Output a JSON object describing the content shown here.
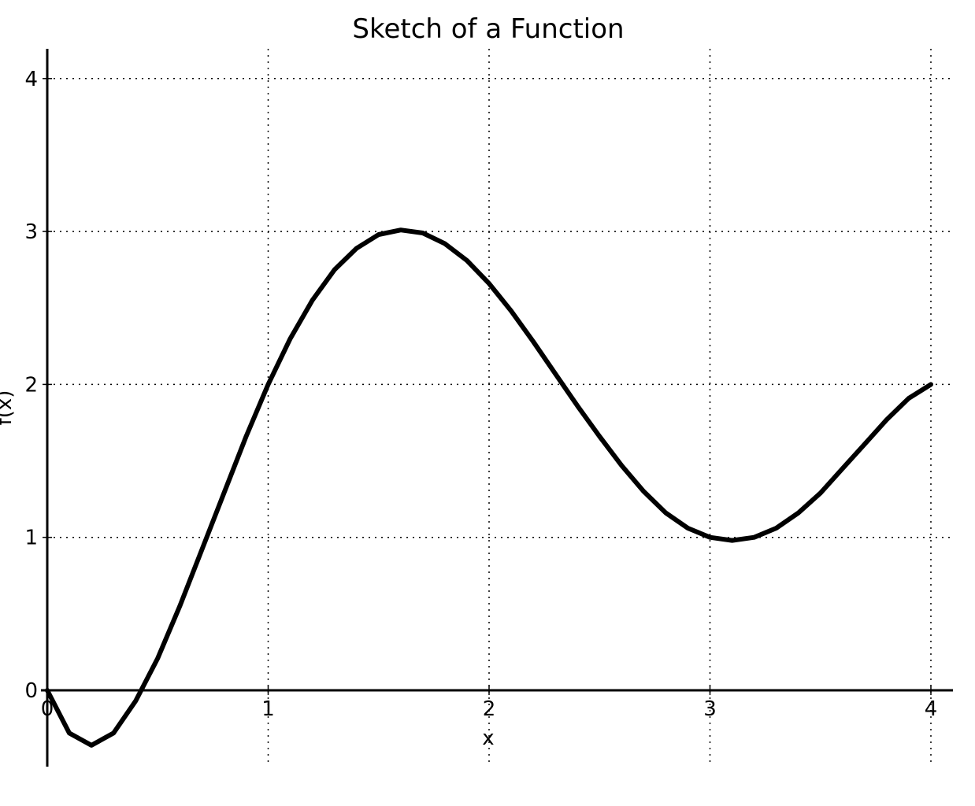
{
  "chart_data": {
    "type": "line",
    "title": "Sketch of a Function",
    "xlabel": "x",
    "ylabel": "f(x)",
    "xlim": [
      0,
      4.1
    ],
    "ylim": [
      -0.5,
      4.2
    ],
    "x_ticks": [
      "0",
      "1",
      "2",
      "3",
      "4"
    ],
    "y_ticks": [
      "0",
      "1",
      "2",
      "3",
      "4"
    ],
    "grid": true,
    "series": [
      {
        "x": [
          0,
          0.1,
          0.2,
          0.3,
          0.4,
          0.5,
          0.6,
          0.7,
          0.8,
          0.9,
          1.0,
          1.1,
          1.2,
          1.3,
          1.4,
          1.5,
          1.6,
          1.7,
          1.8,
          1.9,
          2.0,
          2.1,
          2.2,
          2.3,
          2.4,
          2.5,
          2.6,
          2.7,
          2.8,
          2.9,
          3.0,
          3.1,
          3.2,
          3.3,
          3.4,
          3.5,
          3.6,
          3.7,
          3.8,
          3.9,
          4.0
        ],
        "y": [
          0,
          -0.28,
          -0.36,
          -0.28,
          -0.07,
          0.21,
          0.55,
          0.92,
          1.29,
          1.66,
          2.0,
          2.3,
          2.55,
          2.75,
          2.89,
          2.98,
          3.01,
          2.99,
          2.92,
          2.81,
          2.66,
          2.48,
          2.28,
          2.07,
          1.86,
          1.66,
          1.47,
          1.3,
          1.16,
          1.06,
          1.0,
          0.98,
          1.0,
          1.06,
          1.16,
          1.29,
          1.45,
          1.61,
          1.77,
          1.91,
          2.0
        ]
      }
    ]
  }
}
